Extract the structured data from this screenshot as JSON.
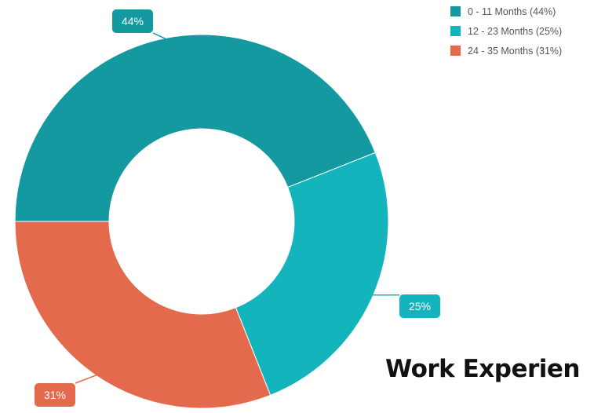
{
  "chart_data": {
    "type": "donut",
    "title": "Work Experien",
    "slices": [
      {
        "label": "0 - 11 Months (44%)",
        "value": 44,
        "data_label": "44%",
        "color": "#1499a0"
      },
      {
        "label": "12 - 23 Months (25%)",
        "value": 25,
        "data_label": "25%",
        "color": "#14b4bc"
      },
      {
        "label": "24 - 35 Months (31%)",
        "value": 31,
        "data_label": "31%",
        "color": "#e36a4c"
      }
    ],
    "legend_position": "top-right"
  }
}
